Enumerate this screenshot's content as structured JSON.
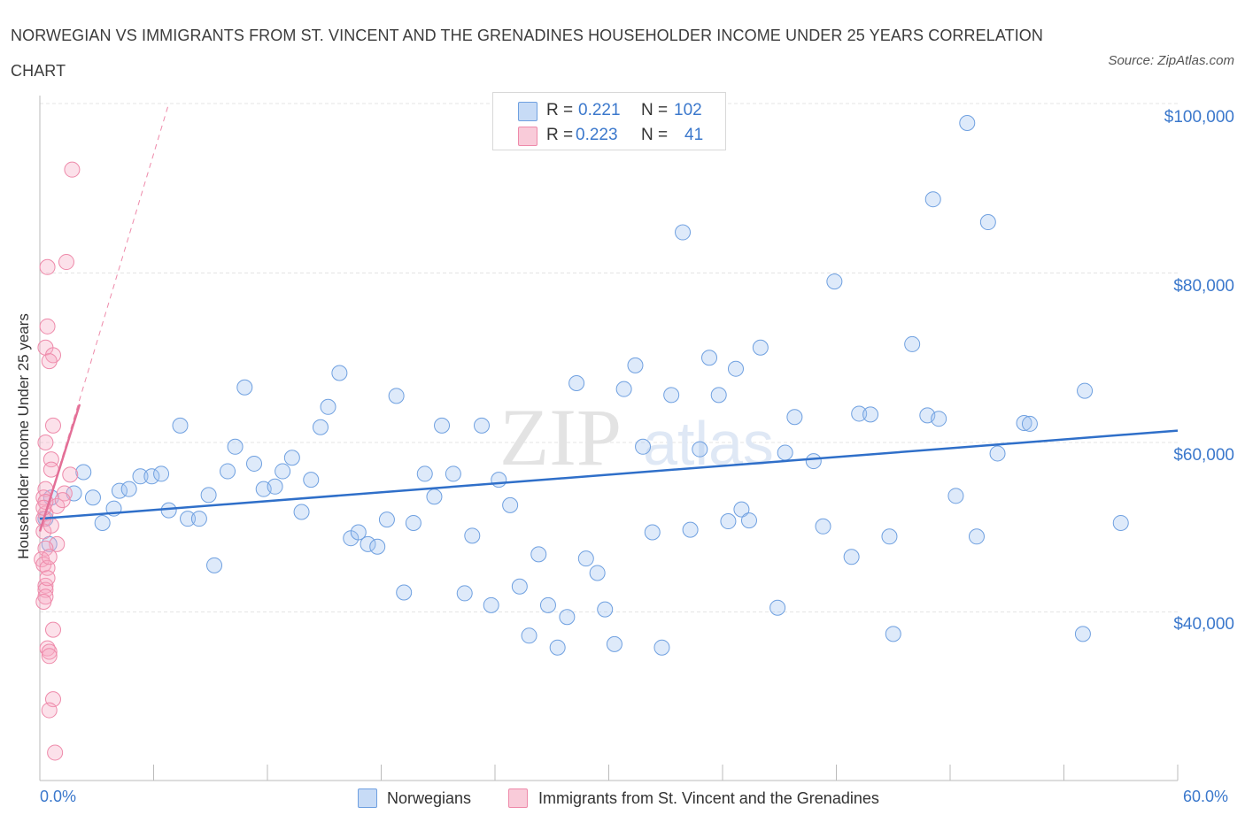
{
  "title": "NORWEGIAN VS IMMIGRANTS FROM ST. VINCENT AND THE GRENADINES HOUSEHOLDER INCOME UNDER 25 YEARS CORRELATION CHART",
  "source": "Source: ZipAtlas.com",
  "watermark": {
    "zip": "ZIP",
    "atlas": "atlas"
  },
  "legend_stats": [
    {
      "r_label": "R =",
      "r_value": "0.221",
      "n_label": "N =",
      "n_value": "102",
      "color": "#6fa0e0"
    },
    {
      "r_label": "R =",
      "r_value": "0.223",
      "n_label": "N =",
      "n_value": "41",
      "color": "#ee8aaa"
    }
  ],
  "chart_data": {
    "type": "scatter",
    "title": "NORWEGIAN VS IMMIGRANTS FROM ST. VINCENT AND THE GRENADINES HOUSEHOLDER INCOME UNDER 25 YEARS CORRELATION CHART",
    "xlabel": "",
    "ylabel": "Householder Income Under 25 years",
    "xlim": [
      0,
      60
    ],
    "ylim": [
      20000,
      102000
    ],
    "x_tick_labels": [
      "0.0%",
      "60.0%"
    ],
    "y_ticks": [
      40000,
      60000,
      80000,
      100000
    ],
    "y_tick_labels": [
      "$40,000",
      "$60,000",
      "$80,000",
      "$100,000"
    ],
    "grid": true,
    "legend_position": "bottom",
    "series": [
      {
        "name": "Norwegians",
        "color": "#6fa0e0",
        "trend": {
          "x": [
            0,
            60
          ],
          "y": [
            51000,
            61400
          ]
        },
        "points": [
          [
            0.3,
            51000
          ],
          [
            0.5,
            48000
          ],
          [
            1.8,
            54000
          ],
          [
            2.3,
            56500
          ],
          [
            2.8,
            53500
          ],
          [
            3.3,
            50500
          ],
          [
            3.9,
            52200
          ],
          [
            4.2,
            54300
          ],
          [
            4.7,
            54500
          ],
          [
            5.3,
            56000
          ],
          [
            5.9,
            56000
          ],
          [
            6.4,
            56300
          ],
          [
            6.8,
            52000
          ],
          [
            7.4,
            62000
          ],
          [
            7.8,
            51000
          ],
          [
            8.4,
            51000
          ],
          [
            8.9,
            53800
          ],
          [
            9.2,
            45500
          ],
          [
            9.9,
            56600
          ],
          [
            10.3,
            59500
          ],
          [
            10.8,
            66500
          ],
          [
            11.3,
            57500
          ],
          [
            11.8,
            54500
          ],
          [
            12.4,
            54800
          ],
          [
            12.8,
            56600
          ],
          [
            13.3,
            58200
          ],
          [
            13.8,
            51800
          ],
          [
            14.3,
            55600
          ],
          [
            14.8,
            61800
          ],
          [
            15.2,
            64200
          ],
          [
            15.8,
            68200
          ],
          [
            16.4,
            48700
          ],
          [
            16.8,
            49400
          ],
          [
            17.3,
            48000
          ],
          [
            17.8,
            47700
          ],
          [
            18.3,
            50900
          ],
          [
            18.8,
            65500
          ],
          [
            19.2,
            42300
          ],
          [
            19.7,
            50500
          ],
          [
            20.3,
            56300
          ],
          [
            20.8,
            53600
          ],
          [
            21.2,
            62000
          ],
          [
            21.8,
            56300
          ],
          [
            22.4,
            42200
          ],
          [
            22.8,
            49000
          ],
          [
            23.3,
            62000
          ],
          [
            23.8,
            40800
          ],
          [
            24.2,
            55600
          ],
          [
            24.8,
            52600
          ],
          [
            25.3,
            43000
          ],
          [
            25.8,
            37200
          ],
          [
            26.3,
            46800
          ],
          [
            26.8,
            40800
          ],
          [
            27.3,
            35800
          ],
          [
            27.8,
            39400
          ],
          [
            28.3,
            67000
          ],
          [
            28.8,
            46300
          ],
          [
            29.4,
            44600
          ],
          [
            29.8,
            40300
          ],
          [
            30.3,
            36200
          ],
          [
            30.8,
            66300
          ],
          [
            31.4,
            69100
          ],
          [
            31.8,
            59500
          ],
          [
            32.3,
            49400
          ],
          [
            32.8,
            35800
          ],
          [
            33.3,
            65600
          ],
          [
            33.9,
            84800
          ],
          [
            34.3,
            49700
          ],
          [
            34.8,
            59200
          ],
          [
            35.3,
            70000
          ],
          [
            35.8,
            65600
          ],
          [
            36.3,
            50700
          ],
          [
            36.7,
            68700
          ],
          [
            37.0,
            52100
          ],
          [
            37.4,
            50800
          ],
          [
            38.0,
            71200
          ],
          [
            38.9,
            40500
          ],
          [
            39.3,
            58800
          ],
          [
            39.8,
            63000
          ],
          [
            40.8,
            57800
          ],
          [
            41.3,
            50100
          ],
          [
            41.9,
            79000
          ],
          [
            42.8,
            46500
          ],
          [
            43.2,
            63400
          ],
          [
            43.8,
            63300
          ],
          [
            44.8,
            48900
          ],
          [
            45.0,
            37400
          ],
          [
            46.0,
            71600
          ],
          [
            47.1,
            88700
          ],
          [
            46.8,
            63200
          ],
          [
            47.4,
            62800
          ],
          [
            48.3,
            53700
          ],
          [
            48.9,
            97700
          ],
          [
            49.4,
            48900
          ],
          [
            50.0,
            86000
          ],
          [
            50.5,
            58700
          ],
          [
            51.9,
            62300
          ],
          [
            52.2,
            62200
          ],
          [
            55.1,
            66100
          ],
          [
            55.0,
            37400
          ],
          [
            57.0,
            50500
          ],
          [
            0.6,
            53500
          ]
        ]
      },
      {
        "name": "Immigrants from St. Vincent and the Grenadines",
        "color": "#ee8aaa",
        "trend": {
          "x": [
            0,
            2.1
          ],
          "y": [
            49500,
            64500
          ]
        },
        "trend_dashed": {
          "x": [
            0,
            6.8
          ],
          "y": [
            49500,
            100000
          ]
        },
        "points": [
          [
            1.7,
            92200
          ],
          [
            0.4,
            80700
          ],
          [
            1.4,
            81300
          ],
          [
            0.4,
            73700
          ],
          [
            0.3,
            71200
          ],
          [
            0.7,
            70300
          ],
          [
            0.5,
            69600
          ],
          [
            0.7,
            62000
          ],
          [
            0.3,
            60000
          ],
          [
            0.6,
            58000
          ],
          [
            0.6,
            56800
          ],
          [
            1.6,
            56200
          ],
          [
            1.3,
            54000
          ],
          [
            0.3,
            54500
          ],
          [
            0.2,
            53500
          ],
          [
            0.9,
            52500
          ],
          [
            0.3,
            51600
          ],
          [
            0.2,
            51000
          ],
          [
            0.9,
            48000
          ],
          [
            0.3,
            47500
          ],
          [
            0.1,
            46200
          ],
          [
            0.2,
            45600
          ],
          [
            0.4,
            45200
          ],
          [
            0.3,
            43100
          ],
          [
            0.3,
            42600
          ],
          [
            0.3,
            41800
          ],
          [
            0.2,
            41200
          ],
          [
            0.7,
            37900
          ],
          [
            0.4,
            35700
          ],
          [
            0.5,
            35300
          ],
          [
            0.5,
            34800
          ],
          [
            0.7,
            29700
          ],
          [
            0.5,
            28400
          ],
          [
            0.8,
            23400
          ],
          [
            0.3,
            53000
          ],
          [
            0.2,
            49500
          ],
          [
            0.5,
            46500
          ],
          [
            0.4,
            44000
          ],
          [
            1.2,
            53200
          ],
          [
            0.6,
            50200
          ],
          [
            0.2,
            52300
          ]
        ]
      }
    ]
  }
}
